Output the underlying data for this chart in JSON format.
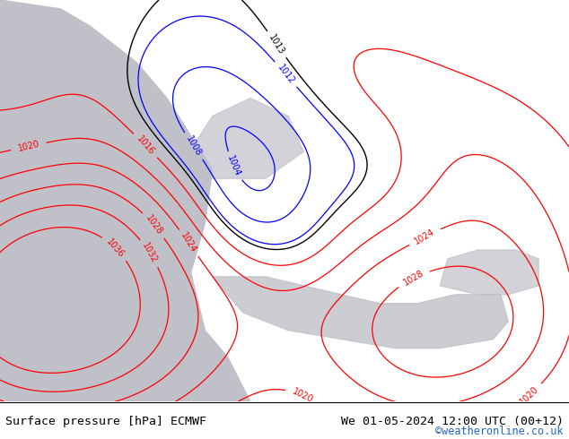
{
  "title_left": "Surface pressure [hPa] ECMWF",
  "title_right": "We 01-05-2024 12:00 UTC (00+12)",
  "copyright": "©weatheronline.co.uk",
  "land_color": "#b8d89a",
  "sea_color": "#c0c0c8",
  "bottom_bar_color": "#ffffff",
  "bottom_text_color": "#000000",
  "copyright_color": "#2266cc",
  "figsize": [
    6.34,
    4.9
  ],
  "dpi": 100,
  "contour_low_color": "blue",
  "contour_high_color": "red",
  "contour_1013_color": "black",
  "label_fontsize": 7,
  "contour_linewidth": 0.9
}
